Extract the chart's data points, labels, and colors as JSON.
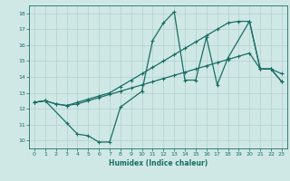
{
  "xlabel": "Humidex (Indice chaleur)",
  "xlim": [
    -0.5,
    23.5
  ],
  "ylim": [
    9.5,
    18.5
  ],
  "xticks": [
    0,
    1,
    2,
    3,
    4,
    5,
    6,
    7,
    8,
    9,
    10,
    11,
    12,
    13,
    14,
    15,
    16,
    17,
    18,
    19,
    20,
    21,
    22,
    23
  ],
  "yticks": [
    10,
    11,
    12,
    13,
    14,
    15,
    16,
    17,
    18
  ],
  "bg_color": "#cfe8e6",
  "grid_color": "#b0d0ce",
  "line_color": "#1a6e64",
  "line1_x": [
    0,
    1,
    2,
    3,
    4,
    5,
    6,
    7,
    8,
    9,
    10,
    11,
    12,
    13,
    14,
    15,
    16,
    17,
    18,
    19,
    20,
    21,
    22,
    23
  ],
  "line1_y": [
    12.4,
    12.5,
    12.3,
    12.2,
    12.3,
    12.5,
    12.7,
    12.9,
    13.1,
    13.3,
    13.5,
    13.7,
    13.9,
    14.1,
    14.3,
    14.5,
    14.7,
    14.9,
    15.1,
    15.3,
    15.5,
    14.5,
    14.5,
    13.7
  ],
  "line2_x": [
    0,
    1,
    3,
    4,
    5,
    6,
    7,
    8,
    10,
    11,
    12,
    13,
    14,
    15,
    16,
    17,
    18,
    20,
    21,
    22,
    23
  ],
  "line2_y": [
    12.4,
    12.5,
    11.1,
    10.4,
    10.3,
    9.9,
    9.9,
    12.1,
    13.1,
    16.3,
    17.4,
    18.1,
    13.8,
    13.8,
    16.5,
    13.5,
    15.2,
    17.5,
    14.5,
    14.5,
    14.2
  ],
  "line3_x": [
    0,
    1,
    2,
    3,
    4,
    5,
    6,
    7,
    8,
    9,
    10,
    11,
    12,
    13,
    14,
    15,
    16,
    17,
    18,
    19,
    20,
    21,
    22,
    23
  ],
  "line3_y": [
    12.4,
    12.5,
    12.3,
    12.2,
    12.4,
    12.6,
    12.8,
    13.0,
    13.4,
    13.8,
    14.2,
    14.6,
    15.0,
    15.4,
    15.8,
    16.2,
    16.6,
    17.0,
    17.4,
    17.5,
    17.5,
    14.5,
    14.5,
    13.7
  ]
}
